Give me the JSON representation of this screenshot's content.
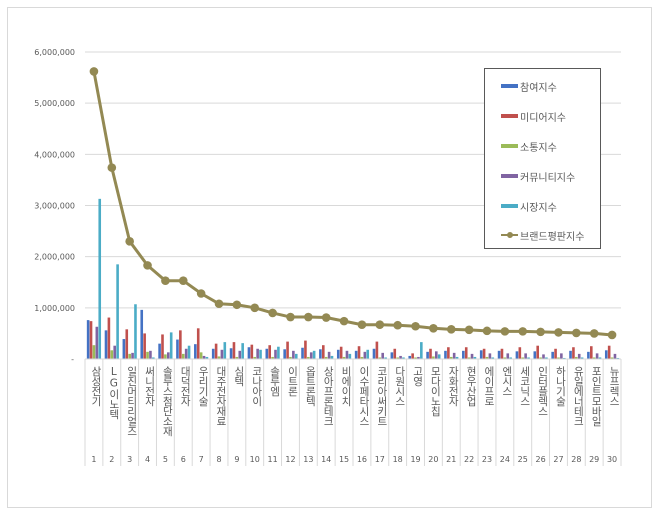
{
  "chart_data": {
    "type": "bar+line",
    "title": "",
    "xlabel": "",
    "ylabel": "",
    "ylim": [
      0,
      6000000
    ],
    "yticks": [
      "-",
      "1,000,000",
      "2,000,000",
      "3,000,000",
      "4,000,000",
      "5,000,000",
      "6,000,000"
    ],
    "grid": true,
    "legend_position": "right-inside",
    "categories": [
      "삼성전기",
      "LG이노텍",
      "일진머티리얼즈",
      "써니전자",
      "솔루스첨단소재",
      "대덕전자",
      "우리기술",
      "대주전자재료",
      "심텍",
      "코나아이",
      "솔루엠",
      "이트론",
      "옵트론텍",
      "상아프론테크",
      "비에이치",
      "이수페타시스",
      "코리아써키트",
      "다원시스",
      "고영",
      "모다이노칩",
      "자화전자",
      "현우산업",
      "에이프로",
      "엔시스",
      "세코닉스",
      "인터플렉스",
      "하나기술",
      "유일에너테크",
      "포인트모바일",
      "뉴프렉스"
    ],
    "ranks": [
      "1",
      "2",
      "3",
      "4",
      "5",
      "6",
      "7",
      "8",
      "9",
      "10",
      "11",
      "12",
      "13",
      "14",
      "15",
      "16",
      "17",
      "18",
      "19",
      "20",
      "21",
      "22",
      "23",
      "24",
      "25",
      "26",
      "27",
      "28",
      "29",
      "30"
    ],
    "series": [
      {
        "name": "참여지수",
        "type": "bar",
        "color": "#4472c4",
        "values": [
          760000,
          560000,
          390000,
          960000,
          300000,
          380000,
          290000,
          200000,
          210000,
          230000,
          200000,
          190000,
          220000,
          190000,
          180000,
          160000,
          200000,
          130000,
          60000,
          140000,
          160000,
          160000,
          170000,
          160000,
          150000,
          150000,
          140000,
          160000,
          140000,
          170000
        ]
      },
      {
        "name": "미디어지수",
        "type": "bar",
        "color": "#c0504d",
        "values": [
          740000,
          810000,
          580000,
          500000,
          480000,
          560000,
          600000,
          300000,
          330000,
          280000,
          270000,
          340000,
          360000,
          270000,
          240000,
          250000,
          340000,
          200000,
          110000,
          200000,
          230000,
          230000,
          200000,
          200000,
          230000,
          260000,
          200000,
          230000,
          250000,
          260000
        ]
      },
      {
        "name": "소통지수",
        "type": "bar",
        "color": "#9bbb59",
        "values": [
          270000,
          170000,
          100000,
          140000,
          90000,
          100000,
          130000,
          50000,
          40000,
          40000,
          40000,
          40000,
          40000,
          40000,
          40000,
          40000,
          30000,
          30000,
          30000,
          50000,
          40000,
          30000,
          40000,
          30000,
          30000,
          30000,
          30000,
          40000,
          30000,
          30000
        ]
      },
      {
        "name": "커뮤니티지수",
        "type": "bar",
        "color": "#8064a2",
        "values": [
          630000,
          260000,
          120000,
          160000,
          130000,
          200000,
          60000,
          180000,
          160000,
          200000,
          180000,
          160000,
          130000,
          140000,
          160000,
          140000,
          120000,
          60000,
          40000,
          150000,
          120000,
          100000,
          110000,
          110000,
          110000,
          90000,
          110000,
          100000,
          110000,
          100000
        ]
      },
      {
        "name": "시장지수",
        "type": "bar",
        "color": "#4bacc6",
        "values": [
          3130000,
          1850000,
          1070000,
          30000,
          520000,
          260000,
          40000,
          330000,
          310000,
          180000,
          240000,
          100000,
          160000,
          60000,
          100000,
          180000,
          30000,
          30000,
          330000,
          90000,
          40000,
          40000,
          30000,
          30000,
          30000,
          30000,
          20000,
          30000,
          30000,
          20000
        ]
      },
      {
        "name": "브랜드평판지수",
        "type": "line",
        "color": "#938953",
        "values": [
          5620000,
          3740000,
          2300000,
          1830000,
          1530000,
          1530000,
          1280000,
          1080000,
          1060000,
          1000000,
          900000,
          820000,
          820000,
          810000,
          740000,
          670000,
          670000,
          660000,
          640000,
          600000,
          580000,
          570000,
          550000,
          540000,
          540000,
          530000,
          520000,
          510000,
          500000,
          470000
        ]
      }
    ]
  }
}
